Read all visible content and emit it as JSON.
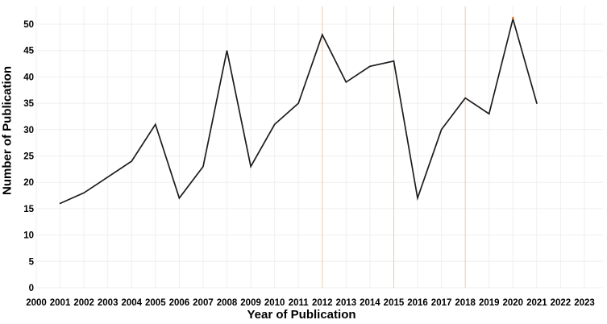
{
  "chart_data": {
    "type": "line",
    "title": "",
    "xlabel": "Year of Publication",
    "ylabel": "Number of Publication",
    "x": [
      2001,
      2002,
      2003,
      2004,
      2005,
      2006,
      2007,
      2008,
      2009,
      2010,
      2011,
      2012,
      2013,
      2014,
      2015,
      2016,
      2017,
      2018,
      2019,
      2020,
      2021
    ],
    "values": [
      16,
      18,
      21,
      24,
      31,
      17,
      23,
      45,
      23,
      31,
      35,
      48,
      39,
      42,
      43,
      17,
      30,
      36,
      33,
      51,
      35
    ],
    "x_ticks": [
      2000,
      2001,
      2002,
      2003,
      2004,
      2005,
      2006,
      2007,
      2008,
      2009,
      2010,
      2011,
      2012,
      2013,
      2014,
      2015,
      2016,
      2017,
      2018,
      2019,
      2020,
      2021,
      2022,
      2023
    ],
    "y_ticks": [
      0,
      5,
      10,
      15,
      20,
      25,
      30,
      35,
      40,
      45,
      50
    ],
    "xlim": [
      2000,
      2023
    ],
    "ylim": [
      0,
      50
    ],
    "grid": "on",
    "legend": "none",
    "line_color": "#1c1c1c",
    "grid_color": "#efefef",
    "highlight_gridline_years": [
      2012,
      2015,
      2018
    ],
    "highlight_gridline_color": "#eccda5",
    "peak_marker": {
      "x": 2020,
      "y": 51,
      "color": "#e0742c"
    }
  }
}
